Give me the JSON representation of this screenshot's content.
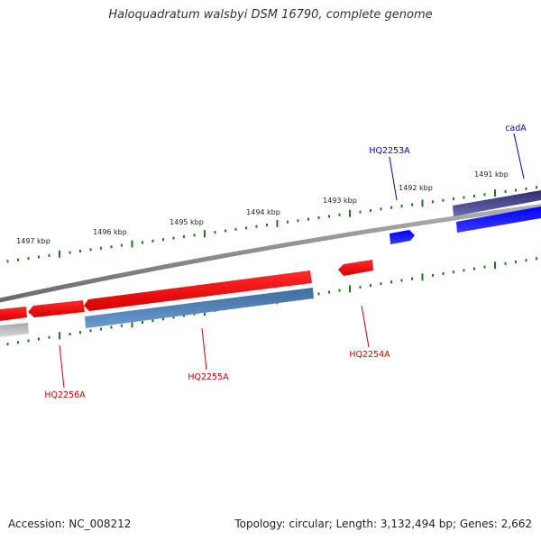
{
  "title": "Haloquadratum walsbyi DSM 16790, complete genome",
  "footer": {
    "accession": "Accession: NC_008212",
    "summary": "Topology: circular; Length: 3,132,494 bp; Genes: 2,662"
  },
  "colors": {
    "forward_cds": "#0000ee",
    "forward_gene": "#3c3c8c",
    "reverse_cds": "#ee0000",
    "reverse_gene": "#4a7bb0",
    "backbone": "#808080",
    "tick": "#1a7a1a",
    "label_forward": "#0000cc",
    "label_reverse": "#cc0000"
  },
  "ticks": [
    {
      "label": "1491 kbp"
    },
    {
      "label": "1492 kbp"
    },
    {
      "label": "1493 kbp"
    },
    {
      "label": "1494 kbp"
    },
    {
      "label": "1495 kbp"
    },
    {
      "label": "1496 kbp"
    },
    {
      "label": "1497 kbp"
    }
  ],
  "genes": [
    {
      "name": "cadA",
      "strand": "forward"
    },
    {
      "name": "HQ2253A",
      "strand": "forward"
    },
    {
      "name": "HQ2254A",
      "strand": "reverse"
    },
    {
      "name": "HQ2255A",
      "strand": "reverse"
    },
    {
      "name": "HQ2256A",
      "strand": "reverse"
    }
  ]
}
